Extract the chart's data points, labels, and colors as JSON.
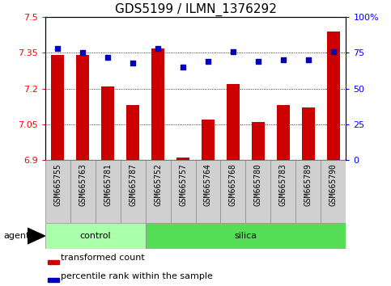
{
  "title": "GDS5199 / ILMN_1376292",
  "samples": [
    "GSM665755",
    "GSM665763",
    "GSM665781",
    "GSM665787",
    "GSM665752",
    "GSM665757",
    "GSM665764",
    "GSM665768",
    "GSM665780",
    "GSM665783",
    "GSM665789",
    "GSM665790"
  ],
  "red_values": [
    7.34,
    7.34,
    7.21,
    7.13,
    7.37,
    6.91,
    7.07,
    7.22,
    7.06,
    7.13,
    7.12,
    7.44
  ],
  "blue_values": [
    78,
    75,
    72,
    68,
    78,
    65,
    69,
    76,
    69,
    70,
    70,
    76
  ],
  "y_min": 6.9,
  "y_max": 7.5,
  "y_ticks": [
    6.9,
    7.05,
    7.2,
    7.35,
    7.5
  ],
  "y_tick_labels": [
    "6.9",
    "7.05",
    "7.2",
    "7.35",
    "7.5"
  ],
  "y2_ticks_pct": [
    0,
    25,
    50,
    75,
    100
  ],
  "y2_tick_labels": [
    "0",
    "25",
    "50",
    "75",
    "100%"
  ],
  "control_count": 4,
  "silica_count": 8,
  "control_label": "control",
  "silica_label": "silica",
  "agent_label": "agent",
  "legend_red": "transformed count",
  "legend_blue": "percentile rank within the sample",
  "bar_color": "#cc0000",
  "dot_color": "#0000bb",
  "control_bg": "#aaffaa",
  "silica_bg": "#55dd55",
  "tick_label_bg": "#d0d0d0",
  "plot_bg": "#ffffff",
  "title_fontsize": 11,
  "axis_fontsize": 8,
  "tick_fontsize": 7,
  "legend_fontsize": 8
}
